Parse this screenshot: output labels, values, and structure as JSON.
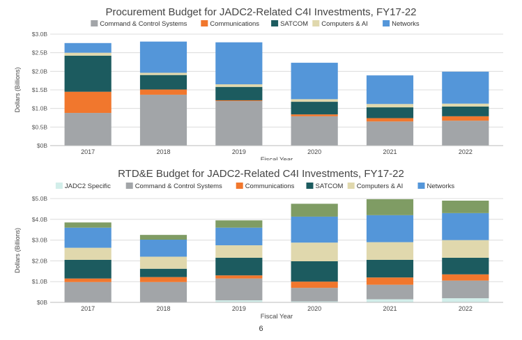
{
  "page_number": "6",
  "colors": {
    "JADC2 Specific": "#d2eeea",
    "Command & Control Systems": "#a2a5a8",
    "Communications": "#f1772d",
    "SATCOM": "#1c5b5f",
    "Computers & AI": "#e0d8ad",
    "Networks": "#5496d9",
    "Other": "#7f9c64"
  },
  "chart_data": [
    {
      "type": "bar",
      "stacked": true,
      "title": "Procurement Budget for JADC2-Related C4I Investments, FY17-22",
      "xlabel": "Fiscal Year",
      "ylabel": "Dollars (Billions)",
      "ylim": [
        0,
        3.0
      ],
      "yticks": [
        0,
        0.5,
        1.0,
        1.5,
        2.0,
        2.5,
        3.0
      ],
      "ytick_labels": [
        "$0B",
        "$0.5B",
        "$1.0B",
        "$1.5B",
        "$2.0B",
        "$2.5B",
        "$3.0B"
      ],
      "legend_position": "top",
      "categories": [
        "2017",
        "2018",
        "2019",
        "2020",
        "2021",
        "2022"
      ],
      "series": [
        {
          "name": "Command & Control Systems",
          "values": [
            0.88,
            1.37,
            1.2,
            0.79,
            0.65,
            0.67
          ]
        },
        {
          "name": "Communications",
          "values": [
            0.57,
            0.14,
            0.02,
            0.05,
            0.09,
            0.12
          ]
        },
        {
          "name": "SATCOM",
          "values": [
            0.97,
            0.39,
            0.36,
            0.34,
            0.29,
            0.26
          ]
        },
        {
          "name": "Computers & AI",
          "values": [
            0.08,
            0.06,
            0.07,
            0.07,
            0.09,
            0.08
          ]
        },
        {
          "name": "Networks",
          "values": [
            0.26,
            0.84,
            1.13,
            0.98,
            0.77,
            0.86
          ]
        }
      ]
    },
    {
      "type": "bar",
      "stacked": true,
      "title": "RTD&E Budget for JADC2-Related C4I Investments, FY17-22",
      "xlabel": "Fiscal Year",
      "ylabel": "Dollars (Billions)",
      "ylim": [
        0,
        5.0
      ],
      "yticks": [
        0,
        1.0,
        2.0,
        3.0,
        4.0,
        5.0
      ],
      "ytick_labels": [
        "$0B",
        "$1.0B",
        "$2.0B",
        "$3.0B",
        "$4.0B",
        "$5.0B"
      ],
      "legend_position": "top",
      "categories": [
        "2017",
        "2018",
        "2019",
        "2020",
        "2021",
        "2022"
      ],
      "series": [
        {
          "name": "JADC2 Specific",
          "values": [
            0.0,
            0.0,
            0.1,
            0.05,
            0.15,
            0.2
          ]
        },
        {
          "name": "Command & Control Systems",
          "values": [
            0.98,
            0.98,
            1.05,
            0.65,
            0.7,
            0.85
          ]
        },
        {
          "name": "Communications",
          "values": [
            0.17,
            0.24,
            0.15,
            0.3,
            0.35,
            0.3
          ]
        },
        {
          "name": "SATCOM",
          "values": [
            0.9,
            0.4,
            0.85,
            0.98,
            0.85,
            0.8
          ]
        },
        {
          "name": "Computers & AI",
          "values": [
            0.58,
            0.58,
            0.6,
            0.9,
            0.85,
            0.85
          ]
        },
        {
          "name": "Networks",
          "values": [
            0.97,
            0.82,
            0.85,
            1.25,
            1.3,
            1.3
          ]
        },
        {
          "values": [
            0.25,
            0.23,
            0.35,
            0.62,
            0.77,
            0.6
          ]
        }
      ]
    }
  ]
}
